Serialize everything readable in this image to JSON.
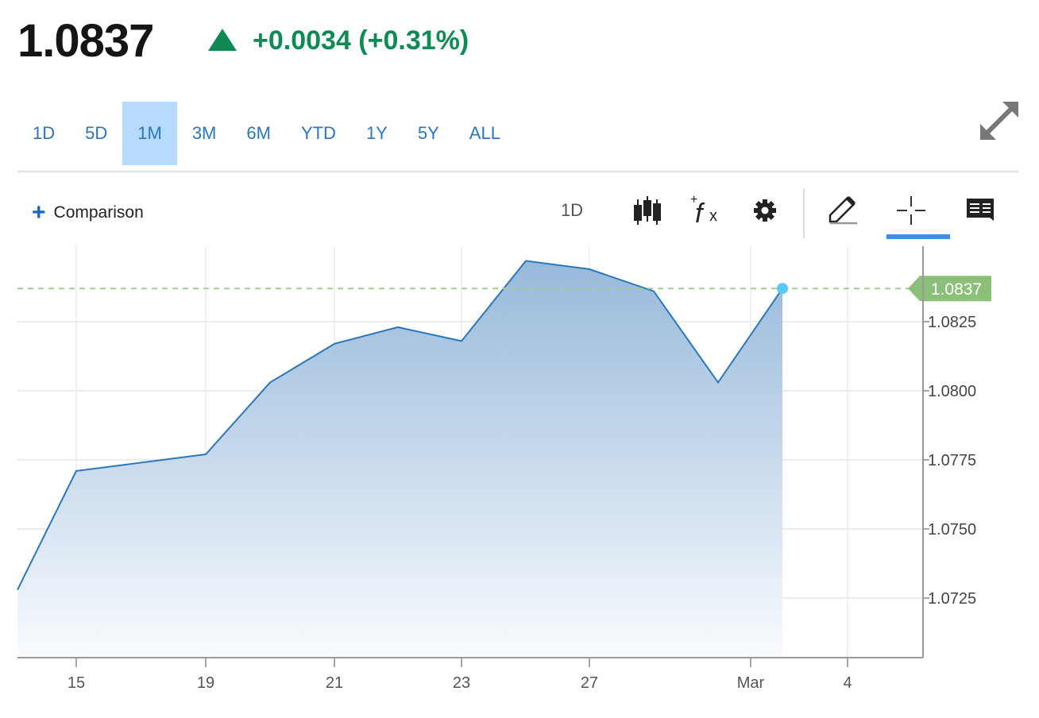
{
  "quote": {
    "price": "1.0837",
    "change": "+0.0034 (+0.31%)",
    "direction_icon": "triangle-up-icon",
    "color": "#0f8a55"
  },
  "ranges": [
    {
      "label": "1D"
    },
    {
      "label": "5D"
    },
    {
      "label": "1M",
      "active": true
    },
    {
      "label": "3M"
    },
    {
      "label": "6M"
    },
    {
      "label": "YTD"
    },
    {
      "label": "1Y"
    },
    {
      "label": "5Y"
    },
    {
      "label": "ALL"
    }
  ],
  "toolbar": {
    "comparison_label": "Comparison",
    "interval_label": "1D",
    "icons": [
      "candlestick-icon",
      "function-icon",
      "gear-icon",
      "pencil-icon",
      "crosshair-icon",
      "comment-icon"
    ],
    "active_tool": "crosshair-icon"
  },
  "chart_data": {
    "type": "area",
    "x": [
      "Feb 14",
      "Feb 15",
      "Feb 19",
      "Feb 20",
      "Feb 21",
      "Feb 22",
      "Feb 23",
      "Feb 26",
      "Feb 27",
      "Feb 28",
      "Feb 29",
      "Mar 1"
    ],
    "values": [
      1.0728,
      1.0771,
      1.0777,
      1.0803,
      1.0817,
      1.0823,
      1.0818,
      1.0847,
      1.0844,
      1.0836,
      1.0803,
      1.0837
    ],
    "x_tick_labels": [
      "15",
      "19",
      "21",
      "23",
      "27",
      "Mar",
      "4"
    ],
    "y_tick_labels": [
      "1.0825",
      "1.0800",
      "1.0775",
      "1.0750",
      "1.0725"
    ],
    "ylim": [
      1.0704,
      1.0856
    ],
    "last_value_label": "1.0837",
    "grid": true,
    "line_color": "#2a77bd",
    "last_label_color": "#8cc07a"
  }
}
